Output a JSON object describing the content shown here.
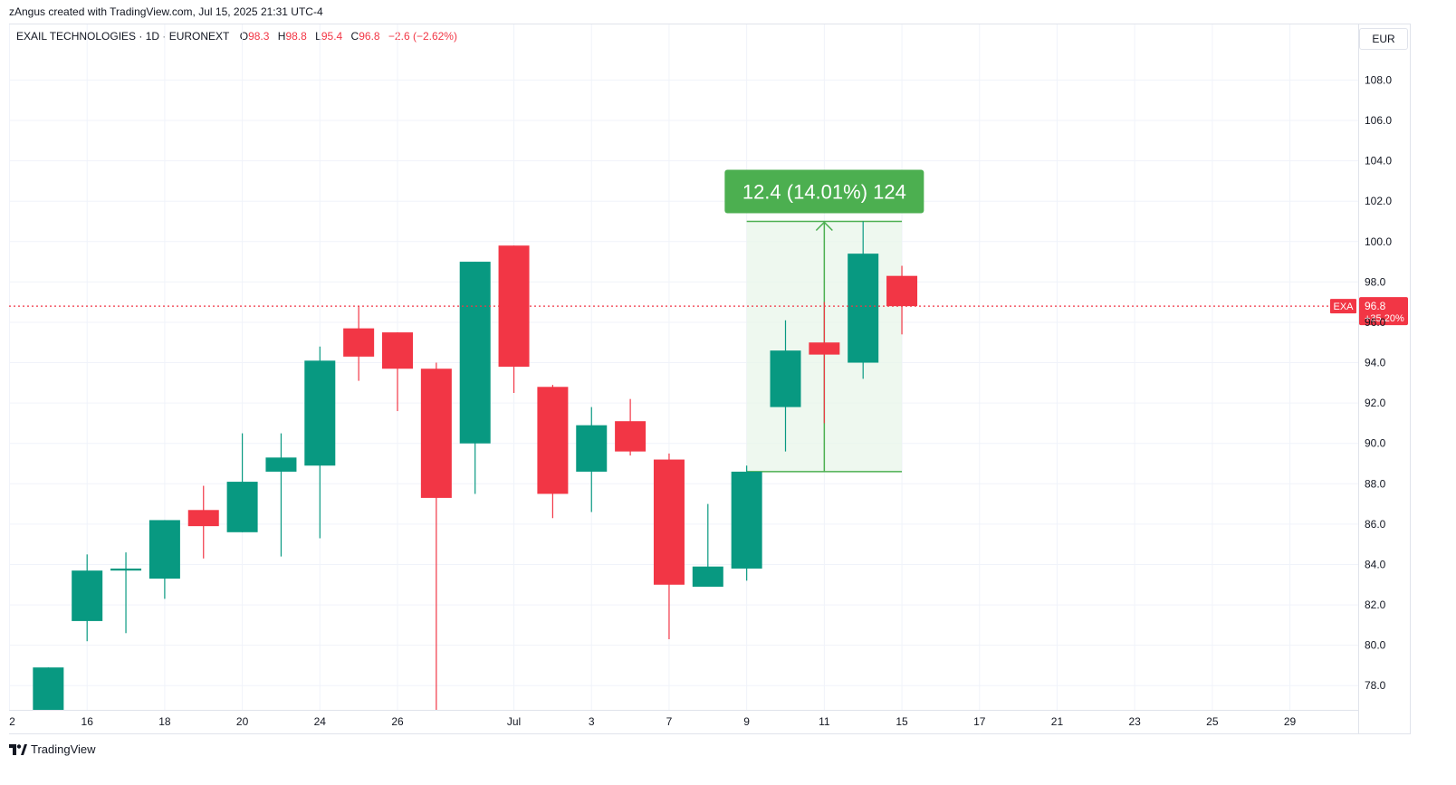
{
  "caption": "zAngus created with TradingView.com, Jul 15, 2025 21:31 UTC-4",
  "legend": {
    "symbol_line": "EXAIL TECHNOLOGIES · 1D · EURONEXT",
    "o_label": "O",
    "o_value": "98.3",
    "h_label": "H",
    "h_value": "98.8",
    "l_label": "L",
    "l_value": "95.4",
    "c_label": "C",
    "c_value": "96.8",
    "change": "−2.6 (−2.62%)"
  },
  "currency": "EUR",
  "brand": "TradingView",
  "colors": {
    "up": "#089981",
    "down": "#f23645",
    "measure": "#4caf50",
    "measure_fill": "#e8f5e9"
  },
  "chart_data": {
    "type": "candlestick",
    "ylim": [
      76.8,
      110.8
    ],
    "y_ticks": [
      78.0,
      80.0,
      82.0,
      84.0,
      86.0,
      88.0,
      90.0,
      92.0,
      94.0,
      96.0,
      98.0,
      100.0,
      102.0,
      104.0,
      106.0,
      108.0
    ],
    "y_tick_labels": [
      "78.0",
      "80.0",
      "82.0",
      "84.0",
      "86.0",
      "88.0",
      "90.0",
      "92.0",
      "94.0",
      "96.0",
      "98.0",
      "100.0",
      "102.0",
      "104.0",
      "106.0",
      "108.0"
    ],
    "x_ticks": [
      {
        "label": "2",
        "pos": 0
      },
      {
        "label": "16",
        "pos": 2
      },
      {
        "label": "18",
        "pos": 4
      },
      {
        "label": "20",
        "pos": 6
      },
      {
        "label": "24",
        "pos": 8
      },
      {
        "label": "26",
        "pos": 10
      },
      {
        "label": "Jul",
        "pos": 13
      },
      {
        "label": "3",
        "pos": 15
      },
      {
        "label": "7",
        "pos": 17
      },
      {
        "label": "9",
        "pos": 19
      },
      {
        "label": "11",
        "pos": 21
      },
      {
        "label": "15",
        "pos": 23
      },
      {
        "label": "17",
        "pos": 25
      },
      {
        "label": "21",
        "pos": 27
      },
      {
        "label": "23",
        "pos": 29
      },
      {
        "label": "25",
        "pos": 31
      },
      {
        "label": "29",
        "pos": 33
      }
    ],
    "candles": [
      {
        "pos": 1,
        "o": 76.8,
        "h": 78.9,
        "l": 76.8,
        "c": 78.9
      },
      {
        "pos": 2,
        "o": 81.2,
        "h": 84.5,
        "l": 80.2,
        "c": 83.7
      },
      {
        "pos": 3,
        "o": 83.7,
        "h": 84.6,
        "l": 80.6,
        "c": 83.8
      },
      {
        "pos": 4,
        "o": 83.3,
        "h": 86.2,
        "l": 82.3,
        "c": 86.2
      },
      {
        "pos": 5,
        "o": 86.7,
        "h": 87.9,
        "l": 84.3,
        "c": 85.9
      },
      {
        "pos": 6,
        "o": 85.6,
        "h": 90.5,
        "l": 85.6,
        "c": 88.1
      },
      {
        "pos": 7,
        "o": 88.6,
        "h": 90.5,
        "l": 84.4,
        "c": 89.3
      },
      {
        "pos": 8,
        "o": 88.9,
        "h": 94.8,
        "l": 85.3,
        "c": 94.1
      },
      {
        "pos": 9,
        "o": 95.7,
        "h": 96.8,
        "l": 93.1,
        "c": 94.3
      },
      {
        "pos": 10,
        "o": 95.5,
        "h": 95.5,
        "l": 91.6,
        "c": 93.7
      },
      {
        "pos": 11,
        "o": 93.7,
        "h": 94.0,
        "l": 76.8,
        "c": 87.3
      },
      {
        "pos": 12,
        "o": 90.0,
        "h": 99.0,
        "l": 87.5,
        "c": 99.0
      },
      {
        "pos": 13,
        "o": 99.8,
        "h": 99.8,
        "l": 92.5,
        "c": 93.8
      },
      {
        "pos": 14,
        "o": 92.8,
        "h": 92.9,
        "l": 86.3,
        "c": 87.5
      },
      {
        "pos": 15,
        "o": 88.6,
        "h": 91.8,
        "l": 86.6,
        "c": 90.9
      },
      {
        "pos": 16,
        "o": 91.1,
        "h": 92.2,
        "l": 89.4,
        "c": 89.6
      },
      {
        "pos": 17,
        "o": 89.2,
        "h": 89.5,
        "l": 80.3,
        "c": 83.0
      },
      {
        "pos": 18,
        "o": 82.9,
        "h": 87.0,
        "l": 82.9,
        "c": 83.9
      },
      {
        "pos": 19,
        "o": 83.8,
        "h": 88.9,
        "l": 83.2,
        "c": 88.6
      },
      {
        "pos": 20,
        "o": 91.8,
        "h": 96.1,
        "l": 89.6,
        "c": 94.6
      },
      {
        "pos": 21,
        "o": 95.0,
        "h": 97.0,
        "l": 91.0,
        "c": 94.4
      },
      {
        "pos": 22,
        "o": 94.0,
        "h": 101.0,
        "l": 93.2,
        "c": 99.4
      },
      {
        "pos": 23,
        "o": 98.3,
        "h": 98.8,
        "l": 95.4,
        "c": 96.8
      }
    ],
    "last_price": {
      "symbol": "EXA",
      "value": 96.8,
      "label": "96.8",
      "change_label": "+35.20%"
    },
    "measure": {
      "pos_from": 19,
      "pos_to": 23,
      "price_from": 88.6,
      "price_to": 101.0,
      "label": "12.4 (14.01%) 124"
    }
  }
}
